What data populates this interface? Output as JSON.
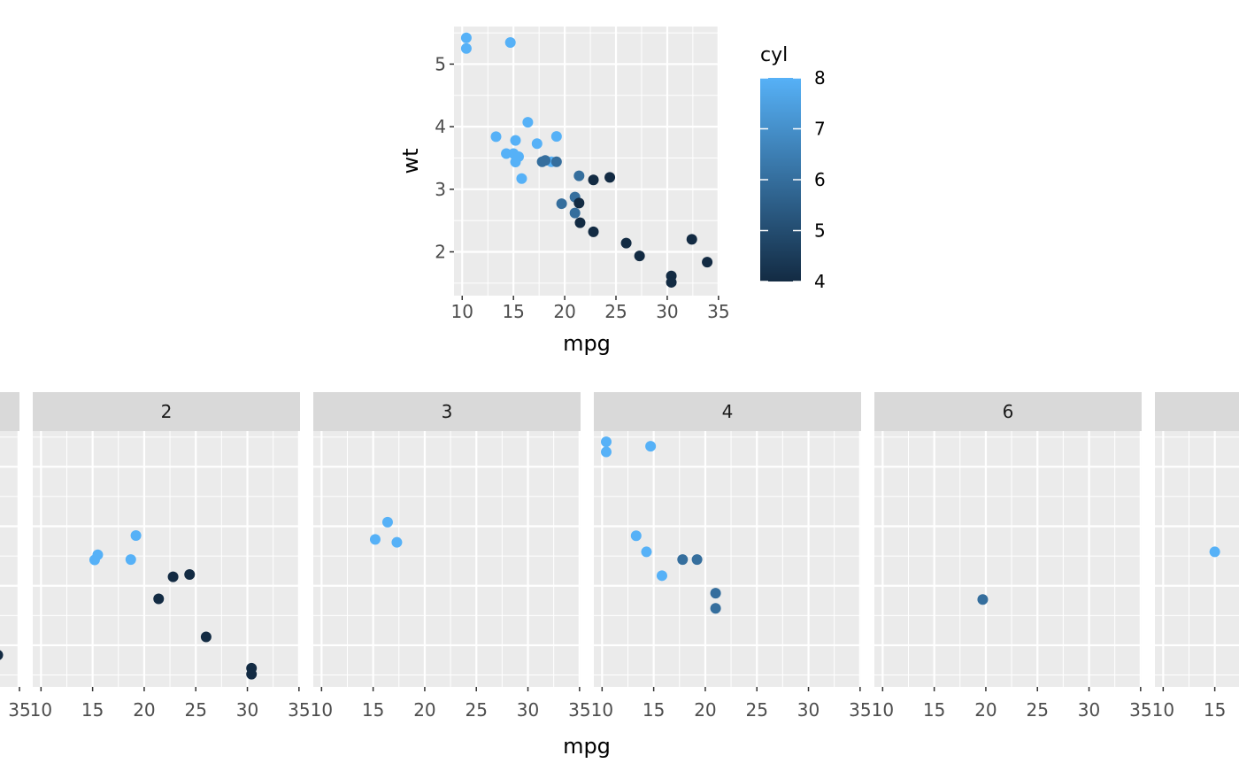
{
  "chart_data": [
    {
      "type": "scatter",
      "xlabel": "mpg",
      "ylabel": "wt",
      "xlim": [
        9.2,
        35.1
      ],
      "ylim": [
        1.3,
        5.6
      ],
      "x_ticks": [
        "10",
        "15",
        "20",
        "25",
        "30",
        "35"
      ],
      "y_ticks": [
        "2",
        "3",
        "4",
        "5"
      ],
      "legend": {
        "title": "cyl",
        "labels": [
          "8",
          "7",
          "6",
          "5",
          "4"
        ],
        "position": "right"
      },
      "color_low": "#132B43",
      "color_high": "#56B1F7",
      "points": [
        {
          "x": 10.4,
          "y": 5.42,
          "cyl": 8
        },
        {
          "x": 10.4,
          "y": 5.25,
          "cyl": 8
        },
        {
          "x": 14.7,
          "y": 5.345,
          "cyl": 8
        },
        {
          "x": 13.3,
          "y": 3.84,
          "cyl": 8
        },
        {
          "x": 14.3,
          "y": 3.57,
          "cyl": 8
        },
        {
          "x": 15.0,
          "y": 3.57,
          "cyl": 8
        },
        {
          "x": 15.2,
          "y": 3.78,
          "cyl": 8
        },
        {
          "x": 15.2,
          "y": 3.435,
          "cyl": 8
        },
        {
          "x": 15.5,
          "y": 3.52,
          "cyl": 8
        },
        {
          "x": 15.8,
          "y": 3.17,
          "cyl": 8
        },
        {
          "x": 16.4,
          "y": 4.07,
          "cyl": 8
        },
        {
          "x": 17.3,
          "y": 3.73,
          "cyl": 8
        },
        {
          "x": 18.7,
          "y": 3.44,
          "cyl": 8
        },
        {
          "x": 19.2,
          "y": 3.845,
          "cyl": 8
        },
        {
          "x": 17.8,
          "y": 3.44,
          "cyl": 6
        },
        {
          "x": 18.1,
          "y": 3.46,
          "cyl": 6
        },
        {
          "x": 19.2,
          "y": 3.44,
          "cyl": 6
        },
        {
          "x": 19.7,
          "y": 2.77,
          "cyl": 6
        },
        {
          "x": 21.0,
          "y": 2.62,
          "cyl": 6
        },
        {
          "x": 21.0,
          "y": 2.875,
          "cyl": 6
        },
        {
          "x": 21.4,
          "y": 3.215,
          "cyl": 6
        },
        {
          "x": 21.4,
          "y": 2.78,
          "cyl": 4
        },
        {
          "x": 21.5,
          "y": 2.465,
          "cyl": 4
        },
        {
          "x": 22.8,
          "y": 2.32,
          "cyl": 4
        },
        {
          "x": 22.8,
          "y": 3.15,
          "cyl": 4
        },
        {
          "x": 24.4,
          "y": 3.19,
          "cyl": 4
        },
        {
          "x": 26.0,
          "y": 2.14,
          "cyl": 4
        },
        {
          "x": 27.3,
          "y": 1.935,
          "cyl": 4
        },
        {
          "x": 30.4,
          "y": 1.615,
          "cyl": 4
        },
        {
          "x": 30.4,
          "y": 1.513,
          "cyl": 4
        },
        {
          "x": 32.4,
          "y": 2.2,
          "cyl": 4
        },
        {
          "x": 33.9,
          "y": 1.835,
          "cyl": 4
        }
      ]
    },
    {
      "type": "scatter",
      "xlabel": "mpg",
      "ylabel": "",
      "xlim": [
        9.2,
        35.1
      ],
      "ylim": [
        1.3,
        5.6
      ],
      "x_ticks": [
        "10",
        "15",
        "20",
        "25",
        "30",
        "35"
      ],
      "partial_left_tick": "35",
      "color_low": "#132B43",
      "color_high": "#56B1F7",
      "left_panel_points": [
        {
          "x": 33.0,
          "y": 1.835,
          "cyl": 4
        }
      ],
      "panels": [
        {
          "label": "2",
          "points": [
            {
              "x": 15.2,
              "y": 3.435,
              "cyl": 8
            },
            {
              "x": 15.5,
              "y": 3.52,
              "cyl": 8
            },
            {
              "x": 18.7,
              "y": 3.44,
              "cyl": 8
            },
            {
              "x": 19.2,
              "y": 3.845,
              "cyl": 8
            },
            {
              "x": 21.4,
              "y": 2.78,
              "cyl": 4
            },
            {
              "x": 22.8,
              "y": 3.15,
              "cyl": 4
            },
            {
              "x": 24.4,
              "y": 3.19,
              "cyl": 4
            },
            {
              "x": 26.0,
              "y": 2.14,
              "cyl": 4
            },
            {
              "x": 30.4,
              "y": 1.615,
              "cyl": 4
            },
            {
              "x": 30.4,
              "y": 1.513,
              "cyl": 4
            }
          ]
        },
        {
          "label": "3",
          "points": [
            {
              "x": 15.2,
              "y": 3.78,
              "cyl": 8
            },
            {
              "x": 16.4,
              "y": 4.07,
              "cyl": 8
            },
            {
              "x": 17.3,
              "y": 3.73,
              "cyl": 8
            }
          ]
        },
        {
          "label": "4",
          "points": [
            {
              "x": 10.4,
              "y": 5.42,
              "cyl": 8
            },
            {
              "x": 10.4,
              "y": 5.25,
              "cyl": 8
            },
            {
              "x": 14.7,
              "y": 5.345,
              "cyl": 8
            },
            {
              "x": 13.3,
              "y": 3.84,
              "cyl": 8
            },
            {
              "x": 14.3,
              "y": 3.57,
              "cyl": 8
            },
            {
              "x": 15.8,
              "y": 3.17,
              "cyl": 8
            },
            {
              "x": 17.8,
              "y": 3.44,
              "cyl": 6
            },
            {
              "x": 19.2,
              "y": 3.44,
              "cyl": 6
            },
            {
              "x": 21.0,
              "y": 2.875,
              "cyl": 6
            },
            {
              "x": 21.0,
              "y": 2.62,
              "cyl": 6
            }
          ]
        },
        {
          "label": "6",
          "points": [
            {
              "x": 19.7,
              "y": 2.77,
              "cyl": 6
            }
          ]
        },
        {
          "label": "",
          "points": [
            {
              "x": 15.0,
              "y": 3.57,
              "cyl": 8
            }
          ]
        }
      ]
    }
  ]
}
